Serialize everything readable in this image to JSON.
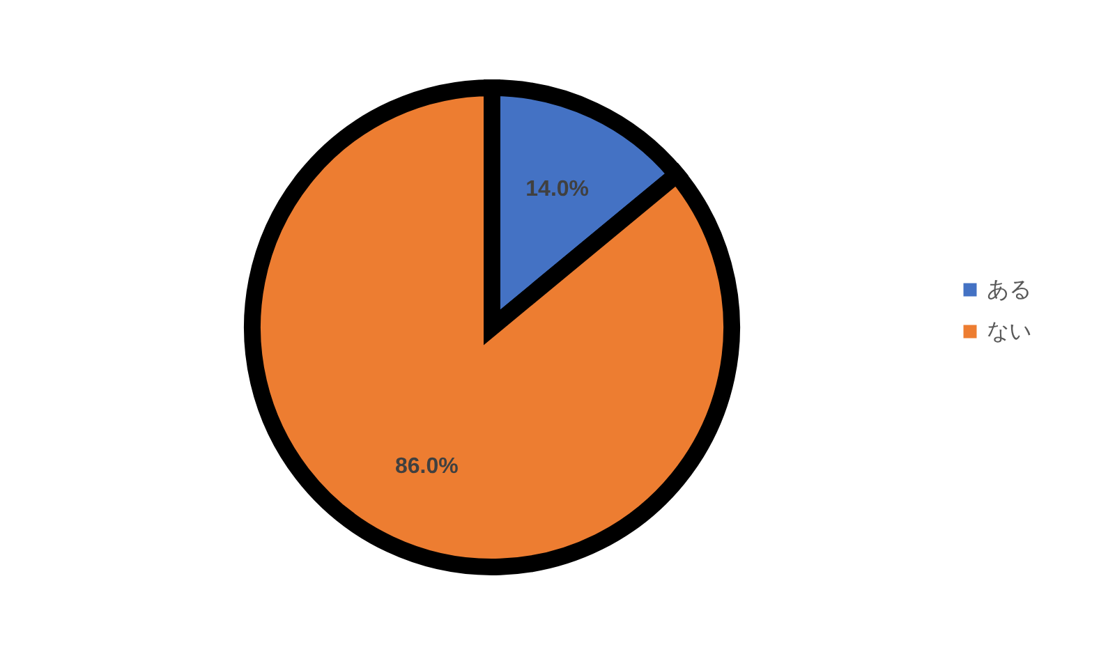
{
  "chart_data": {
    "type": "pie",
    "categories": [
      "ある",
      "ない"
    ],
    "values": [
      14,
      86
    ],
    "colors": [
      "#4472c4",
      "#ed7d31"
    ],
    "value_labels": [
      "14.0%",
      "86.0%"
    ],
    "legend": "right"
  }
}
